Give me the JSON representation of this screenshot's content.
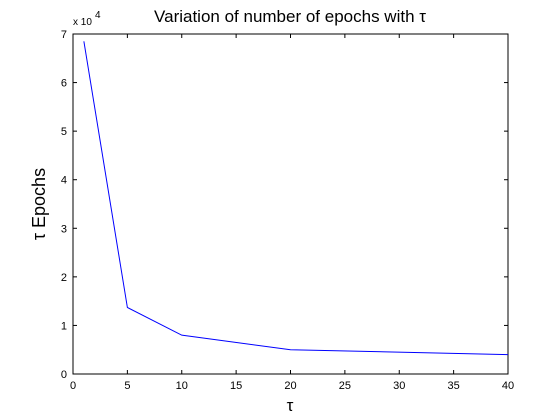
{
  "chart_data": {
    "type": "line",
    "title": "Variation of number of epochs with τ",
    "xlabel": "τ",
    "ylabel": "τ Epochs",
    "y_multiplier_label": "x 10",
    "y_multiplier_exponent": "4",
    "xlim": [
      0,
      40
    ],
    "ylim": [
      0,
      7
    ],
    "x_ticks": [
      0,
      5,
      10,
      15,
      20,
      25,
      30,
      35,
      40
    ],
    "y_ticks": [
      0,
      1,
      2,
      3,
      4,
      5,
      6,
      7
    ],
    "grid": false,
    "series": [
      {
        "color": "#0000ff",
        "x": [
          1,
          5,
          10,
          20,
          40
        ],
        "y": [
          6.85,
          1.37,
          0.8,
          0.5,
          0.4
        ]
      }
    ]
  }
}
